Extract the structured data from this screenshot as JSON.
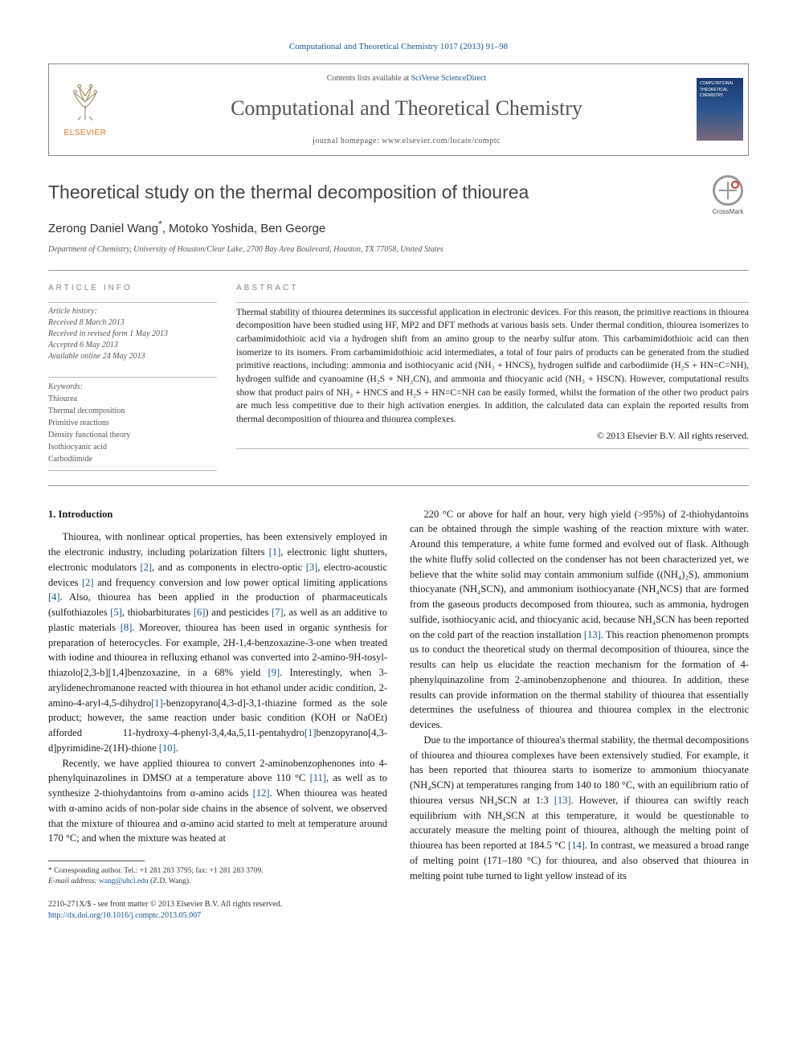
{
  "journal_ref_prefix": "Computational and Theoretical Chemistry 1017 (2013) 91–98",
  "header": {
    "elsevier_label": "ELSEVIER",
    "contents_prefix": "Contents lists available at ",
    "contents_link": "SciVerse ScienceDirect",
    "journal_name": "Computational and Theoretical Chemistry",
    "homepage_prefix": "journal homepage: ",
    "homepage_url": "www.elsevier.com/locate/comptc",
    "cover_title": "COMPUTATIONAL THEORETICAL CHEMISTRY"
  },
  "crossmark_label": "CrossMark",
  "title": "Theoretical study on the thermal decomposition of thiourea",
  "authors_line": "Zerong Daniel Wang",
  "authors_sep_rest": ", Motoko Yoshida, Ben George",
  "corr_mark": "*",
  "affiliation": "Department of Chemistry, University of Houston/Clear Lake, 2700 Bay Area Boulevard, Houston, TX 77058, United States",
  "info": {
    "section_label": "ARTICLE INFO",
    "history_label": "Article history:",
    "received": "Received 8 March 2013",
    "revised": "Received in revised form 1 May 2013",
    "accepted": "Accepted 6 May 2013",
    "online": "Available online 24 May 2013",
    "keywords_label": "Keywords:",
    "kw1": "Thiourea",
    "kw2": "Thermal decomposition",
    "kw3": "Primitive reactions",
    "kw4": "Density functional theory",
    "kw5": "Isothiocyanic acid",
    "kw6": "Carbodiimide"
  },
  "abstract": {
    "section_label": "ABSTRACT",
    "text": "Thermal stability of thiourea determines its successful application in electronic devices. For this reason, the primitive reactions in thiourea decomposition have been studied using HF, MP2 and DFT methods at various basis sets. Under thermal condition, thiourea isomerizes to carbamimidothioic acid via a hydrogen shift from an amino group to the nearby sulfur atom. This carbamimidothioic acid can then isomerize to its isomers. From carbamimidothioic acid intermediates, a total of four pairs of products can be generated from the studied primitive reactions, including: ammonia and isothiocyanic acid (NH₃ + HNCS), hydrogen sulfide and carbodiimide (H₂S + HN=C=NH), hydrogen sulfide and cyanoamine (H₂S + NH₂CN), and ammonia and thiocyanic acid (NH₃ + HSCN). However, computational results show that product pairs of NH₃ + HNCS and H₂S + HN=C=NH can be easily formed, whilst the formation of the other two product pairs are much less competitive due to their high activation energies. In addition, the calculated data can explain the reported results from thermal decomposition of thiourea and thiourea complexes.",
    "copyright": "© 2013 Elsevier B.V. All rights reserved."
  },
  "intro_head": "1. Introduction",
  "para1": "Thiourea, with nonlinear optical properties, has been extensively employed in the electronic industry, including polarization filters [1], electronic light shutters, electronic modulators [2], and as components in electro-optic [3], electro-acoustic devices [2] and frequency conversion and low power optical limiting applications [4]. Also, thiourea has been applied in the production of pharmaceuticals (sulfothiazoles [5], thiobarbiturates [6]) and pesticides [7], as well as an additive to plastic materials [8]. Moreover, thiourea has been used in organic synthesis for preparation of heterocycles. For example, 2H-1,4-benzoxazine-3-one when treated with iodine and thiourea in refluxing ethanol was converted into 2-amino-9H-tosyl-thiazolo[2,3-b][1,4]benzoxazine, in a 68% yield [9]. Interestingly, when 3-arylidenechromanone reacted with thiourea in hot ethanol under acidic condition, 2-amino-4-aryl-4,5-dihydro[1]-benzopyrano[4,3-d]-3,1-thiazine formed as the sole product; however, the same reaction under basic condition (KOH or NaOEt) afforded 11-hydroxy-4-phenyl-3,4,4a,5,11-pentahydro[1]benzopyrano[4,3-d]pyrimidine-2(1H)-thione [10].",
  "para2": "Recently, we have applied thiourea to convert 2-aminobenzophenones into 4-phenylquinazolines in DMSO at a temperature above 110 °C [11], as well as to synthesize 2-thiohydantoins from α-amino acids [12]. When thiourea was heated with α-amino acids of non-polar side chains in the absence of solvent, we observed that the mixture of thiourea and α-amino acid started to melt at temperature around 170 °C; and when the mixture was heated at",
  "para3": "220 °C or above for half an hour, very high yield (>95%) of 2-thiohydantoins can be obtained through the simple washing of the reaction mixture with water. Around this temperature, a white fume formed and evolved out of flask. Although the white fluffy solid collected on the condenser has not been characterized yet, we believe that the white solid may contain ammonium sulfide ((NH₄)₂S), ammonium thiocyanate (NH₄SCN), and ammonium isothiocyanate (NH₄NCS) that are formed from the gaseous products decomposed from thiourea, such as ammonia, hydrogen sulfide, isothiocyanic acid, and thiocyanic acid, because NH₄SCN has been reported on the cold part of the reaction installation [13]. This reaction phenomenon prompts us to conduct the theoretical study on thermal decomposition of thiourea, since the results can help us elucidate the reaction mechanism for the formation of 4-phenylquinazoline from 2-aminobenzophenone and thiourea. In addition, these results can provide information on the thermal stability of thiourea that essentially determines the usefulness of thiourea and thiourea complex in the electronic devices.",
  "para4": "Due to the importance of thiourea's thermal stability, the thermal decompositions of thiourea and thiourea complexes have been extensively studied. For example, it has been reported that thiourea starts to isomerize to ammonium thiocyanate (NH₄SCN) at temperatures ranging from 140 to 180 °C, with an equilibrium ratio of thiourea versus NH₄SCN at 1:3 [13]. However, if thiourea can swiftly reach equilibrium with NH₄SCN at this temperature, it would be questionable to accurately measure the melting point of thiourea, although the melting point of thiourea has been reported at 184.5 °C [14]. In contrast, we measured a broad range of melting point (171–180 °C) for thiourea, and also observed that thiourea in melting point tube turned to light yellow instead of its",
  "footnote": {
    "mark": "*",
    "corr": " Corresponding author. Tel.: +1 281 283 3795; fax: +1 281 283 3709.",
    "email_label": "E-mail address: ",
    "email": "wang@uhcl.edu",
    "email_tail": " (Z.D. Wang)."
  },
  "bottom": {
    "line1": "2210-271X/$ - see front matter © 2013 Elsevier B.V. All rights reserved.",
    "doi_url": "http://dx.doi.org/10.1016/j.comptc.2013.05.007"
  },
  "colors": {
    "link": "#1a5490",
    "elsevier": "#e67817"
  }
}
